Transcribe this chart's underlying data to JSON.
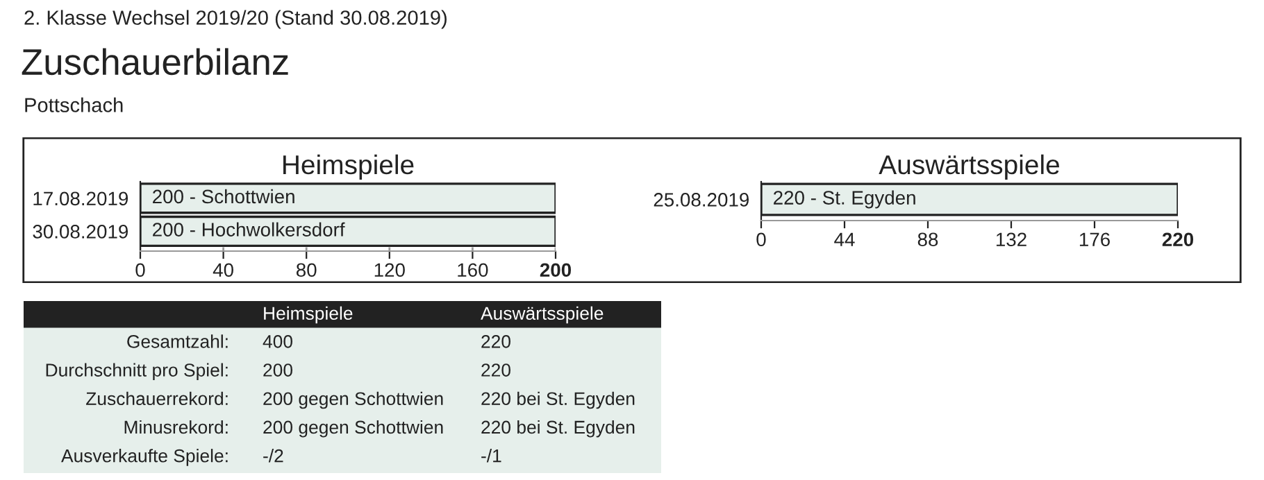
{
  "chart_data": [
    {
      "type": "other",
      "annotations": [
        "2. Klasse Wechsel 2019/20 (Stand 30.08.2019)"
      ],
      "title": "Zuschauerbilanz",
      "subtitle": "Pottschach"
    },
    {
      "type": "bar",
      "orientation": "horizontal",
      "title": "Heimspiele",
      "categories": [
        "17.08.2019",
        "30.08.2019"
      ],
      "values": [
        200,
        200
      ],
      "value_labels": [
        "200 - Schottwien",
        "200 - Hochwolkersdorf"
      ],
      "color": "#e6efeb",
      "xlim": [
        0,
        200
      ],
      "xticks": [
        0,
        40,
        80,
        120,
        160,
        200
      ],
      "grid": "x"
    },
    {
      "type": "bar",
      "orientation": "horizontal",
      "title": "Auswärtsspiele",
      "categories": [
        "25.08.2019"
      ],
      "values": [
        220
      ],
      "value_labels": [
        "220 - St. Egyden"
      ],
      "color": "#e6efeb",
      "xlim": [
        0,
        220
      ],
      "xticks": [
        0,
        44,
        88,
        132,
        176,
        220
      ]
    },
    {
      "type": "other",
      "categories": [
        "Heimspiele",
        "Auswärtsspiele"
      ],
      "y_categories": [
        "Gesamtzahl:",
        "Durchschnitt pro Spiel:",
        "Zuschauerrekord:",
        "Minusrekord:",
        "Ausverkaufte Spiele:"
      ],
      "cell_labels": [
        [
          "400",
          "220"
        ],
        [
          "200",
          "220"
        ],
        [
          "200 gegen Schottwien",
          "220 bei St. Egyden"
        ],
        [
          "200 gegen Schottwien",
          "220 bei St. Egyden"
        ],
        [
          "-/2",
          "-/1"
        ]
      ]
    }
  ]
}
